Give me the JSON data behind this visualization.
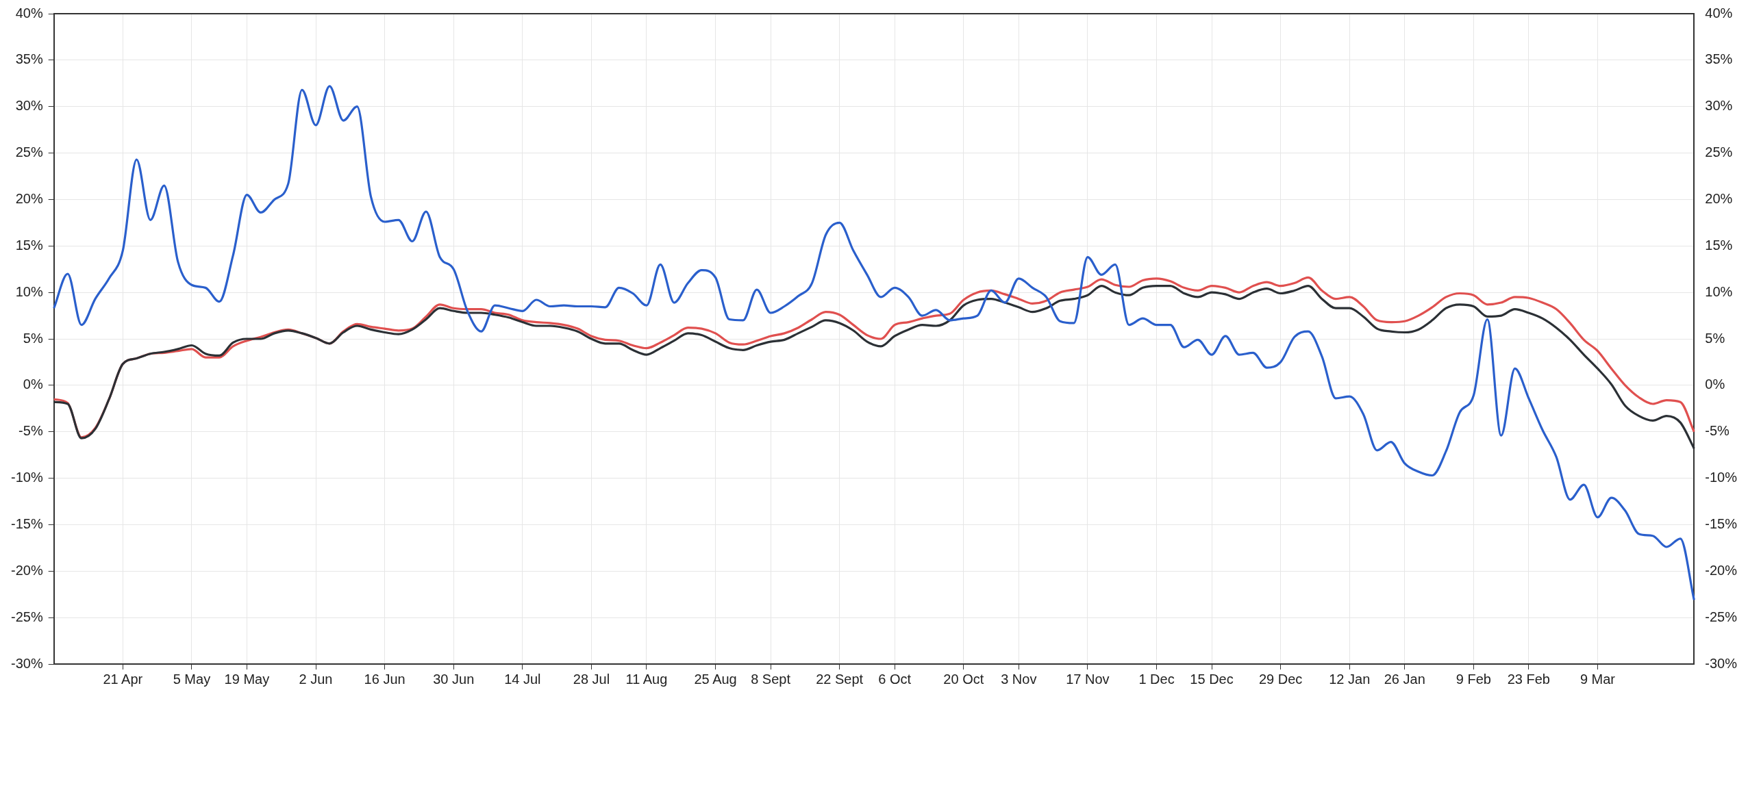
{
  "chart_data": {
    "type": "line",
    "categories": [
      null,
      null,
      null,
      null,
      null,
      "21 Apr",
      null,
      null,
      null,
      null,
      "5 May",
      null,
      null,
      null,
      "19 May",
      null,
      null,
      null,
      null,
      "2 Jun",
      null,
      null,
      null,
      null,
      "16 Jun",
      null,
      null,
      null,
      null,
      "30 Jun",
      null,
      null,
      null,
      null,
      "14 Jul",
      null,
      null,
      null,
      null,
      "28 Jul",
      null,
      null,
      null,
      "11 Aug",
      null,
      null,
      null,
      null,
      "25 Aug",
      null,
      null,
      null,
      "8 Sept",
      null,
      null,
      null,
      null,
      "22 Sept",
      null,
      null,
      null,
      "6 Oct",
      null,
      null,
      null,
      null,
      "20 Oct",
      null,
      null,
      null,
      "3 Nov",
      null,
      null,
      null,
      null,
      "17 Nov",
      null,
      null,
      null,
      null,
      "1 Dec",
      null,
      null,
      null,
      "15 Dec",
      null,
      null,
      null,
      null,
      "29 Dec",
      null,
      null,
      null,
      null,
      "12 Jan",
      null,
      null,
      null,
      "26 Jan",
      null,
      null,
      null,
      null,
      "9 Feb",
      null,
      null,
      null,
      "23 Feb",
      null,
      null,
      null,
      null,
      "9 Mar",
      null,
      null,
      null,
      null,
      null,
      null,
      null
    ],
    "ylim": [
      -30,
      40
    ],
    "yticks": [
      {
        "value": -30,
        "label": "-30%"
      },
      {
        "value": -25,
        "label": "-25%"
      },
      {
        "value": -20,
        "label": "-20%"
      },
      {
        "value": -15,
        "label": "-15%"
      },
      {
        "value": -10,
        "label": "-10%"
      },
      {
        "value": -5,
        "label": "-5%"
      },
      {
        "value": 0,
        "label": "0%"
      },
      {
        "value": 5,
        "label": "5%"
      },
      {
        "value": 10,
        "label": "10%"
      },
      {
        "value": 15,
        "label": "15%"
      },
      {
        "value": 20,
        "label": "20%"
      },
      {
        "value": 25,
        "label": "25%"
      },
      {
        "value": 30,
        "label": "30%"
      },
      {
        "value": 35,
        "label": "35%"
      },
      {
        "value": 40,
        "label": "40%"
      }
    ],
    "y2lim": [
      -30,
      40
    ],
    "y2ticks": [
      {
        "value": -30,
        "label": "-30%"
      },
      {
        "value": -25,
        "label": "-25%"
      },
      {
        "value": -20,
        "label": "-20%"
      },
      {
        "value": -15,
        "label": "-15%"
      },
      {
        "value": -10,
        "label": "-10%"
      },
      {
        "value": -5,
        "label": "-5%"
      },
      {
        "value": 0,
        "label": "0%"
      },
      {
        "value": 5,
        "label": "5%"
      },
      {
        "value": 10,
        "label": "10%"
      },
      {
        "value": 15,
        "label": "15%"
      },
      {
        "value": 20,
        "label": "20%"
      },
      {
        "value": 25,
        "label": "25%"
      },
      {
        "value": 30,
        "label": "30%"
      },
      {
        "value": 35,
        "label": "35%"
      },
      {
        "value": 40,
        "label": "40%"
      }
    ],
    "grid": true,
    "legend": false,
    "marker": "none",
    "line_style": "solid",
    "series": [
      {
        "color": "#2a5fcc",
        "values": [
          8.3,
          12,
          6.5,
          9.3,
          11.5,
          14.5,
          24.3,
          17.8,
          21.5,
          13.3,
          10.8,
          10.5,
          9,
          14,
          20.5,
          18.6,
          20,
          21.7,
          31.8,
          28,
          32.2,
          28.5,
          30,
          20.3,
          17.6,
          17.8,
          15.5,
          18.7,
          13.8,
          12.5,
          8,
          5.8,
          8.6,
          8.3,
          8,
          9.2,
          8.5,
          8.6,
          8.5,
          8.5,
          8.4,
          10.5,
          9.9,
          8.6,
          13,
          8.9,
          11,
          12.4,
          11.6,
          7.1,
          7,
          10.3,
          7.8,
          8.5,
          9.6,
          11,
          16.2,
          17.5,
          14.5,
          11.9,
          9.5,
          10.5,
          9.5,
          7.5,
          8.1,
          7,
          7.2,
          7.5,
          10.2,
          8.9,
          11.5,
          10.5,
          9.5,
          6.9,
          6.7,
          13.8,
          11.9,
          13,
          6.5,
          7.2,
          6.5,
          6.5,
          4.1,
          4.9,
          3.3,
          5.3,
          3.3,
          3.5,
          1.9,
          2.5,
          5.2,
          5.8,
          3.1,
          -1.4,
          -1.2,
          -3.1,
          -7,
          -6.1,
          -8.4,
          -9.3,
          -9.7,
          -7.1,
          -2.9,
          -1.1,
          7.1,
          -5.4,
          1.8,
          -1.4,
          -4.8,
          -7.7,
          -12.3,
          -10.7,
          -14.2,
          -12.1,
          -13.5,
          -16,
          -16.2,
          -17.4,
          -16.5,
          -23.1
        ]
      },
      {
        "color": "#2b3035",
        "values": [
          -1.8,
          -2,
          -5.7,
          -4.7,
          -1.5,
          2.3,
          2.9,
          3.4,
          3.6,
          3.9,
          4.3,
          3.4,
          3.2,
          4.6,
          5,
          5,
          5.6,
          5.9,
          5.6,
          5.1,
          4.5,
          5.7,
          6.4,
          6,
          5.7,
          5.5,
          6,
          7.1,
          8.3,
          8,
          7.8,
          7.8,
          7.6,
          7.3,
          6.8,
          6.4,
          6.4,
          6.2,
          5.8,
          5,
          4.5,
          4.5,
          3.8,
          3.3,
          4,
          4.8,
          5.6,
          5.4,
          4.7,
          4,
          3.8,
          4.3,
          4.7,
          4.9,
          5.6,
          6.3,
          7,
          6.7,
          5.9,
          4.7,
          4.2,
          5.3,
          6,
          6.5,
          6.4,
          7,
          8.6,
          9.2,
          9.3,
          8.9,
          8.4,
          7.9,
          8.3,
          9.1,
          9.3,
          9.7,
          10.7,
          10,
          9.7,
          10.5,
          10.7,
          10.7,
          9.9,
          9.5,
          10,
          9.8,
          9.3,
          10,
          10.4,
          9.9,
          10.2,
          10.7,
          9.3,
          8.3,
          8.3,
          7.4,
          6.1,
          5.8,
          5.7,
          6,
          7,
          8.3,
          8.7,
          8.5,
          7.4,
          7.5,
          8.2,
          7.8,
          7.2,
          6.2,
          4.9,
          3.3,
          1.8,
          0.1,
          -2.2,
          -3.3,
          -3.8,
          -3.3,
          -4,
          -6.8
        ]
      },
      {
        "color": "#e0504f",
        "values": [
          -1.5,
          -1.9,
          -5.6,
          -4.6,
          -1.5,
          2.3,
          2.9,
          3.4,
          3.5,
          3.7,
          3.9,
          3,
          3,
          4.2,
          4.8,
          5.2,
          5.7,
          6,
          5.6,
          5.1,
          4.5,
          5.8,
          6.6,
          6.3,
          6.1,
          5.9,
          6.1,
          7.4,
          8.7,
          8.3,
          8.2,
          8.2,
          7.8,
          7.6,
          7,
          6.8,
          6.7,
          6.5,
          6.1,
          5.3,
          4.9,
          4.8,
          4.3,
          4,
          4.6,
          5.4,
          6.2,
          6.1,
          5.6,
          4.6,
          4.4,
          4.8,
          5.3,
          5.6,
          6.2,
          7.1,
          7.9,
          7.6,
          6.5,
          5.4,
          5,
          6.5,
          6.8,
          7.2,
          7.5,
          7.7,
          9.2,
          10,
          10.2,
          9.8,
          9.3,
          8.8,
          9.1,
          10,
          10.3,
          10.6,
          11.4,
          10.8,
          10.6,
          11.3,
          11.5,
          11.2,
          10.5,
          10.2,
          10.7,
          10.5,
          10,
          10.7,
          11.1,
          10.7,
          11,
          11.6,
          10.2,
          9.3,
          9.5,
          8.5,
          7,
          6.8,
          6.9,
          7.5,
          8.4,
          9.5,
          9.9,
          9.7,
          8.7,
          8.9,
          9.5,
          9.4,
          8.9,
          8.2,
          6.7,
          4.9,
          3.7,
          1.8,
          0,
          -1.3,
          -2,
          -1.6,
          -1.8,
          -5
        ]
      }
    ]
  }
}
